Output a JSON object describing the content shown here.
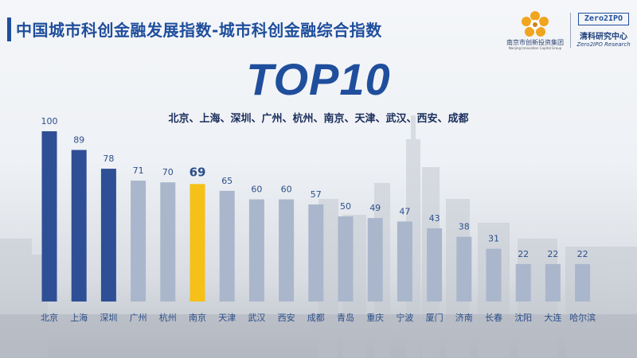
{
  "header": {
    "title": "中国城市科创金融发展指数-城市科创金融综合指数"
  },
  "logo_left": {
    "name": "南京市创新投资集团",
    "name_en": "Nanjing Innovation Capital Group"
  },
  "logo_right": {
    "badge": "Zero2IPO",
    "name": "清科研究中心",
    "name_en": "Zero2IPO Research"
  },
  "headline": "TOP10",
  "subheadline": "北京、上海、深圳、广州、杭州、南京、天津、武汉、西安、成都",
  "colors": {
    "accent": "#1f4e9c",
    "bar_top3": "#2e4f95",
    "bar_other": "#aab6cb",
    "bar_highlight": "#f5c018",
    "label": "#2c4f8a"
  },
  "chart_data": {
    "type": "bar",
    "categories": [
      "北京",
      "上海",
      "深圳",
      "广州",
      "杭州",
      "南京",
      "天津",
      "武汉",
      "西安",
      "成都",
      "青岛",
      "重庆",
      "宁波",
      "厦门",
      "济南",
      "长春",
      "沈阳",
      "大连",
      "哈尔滨"
    ],
    "values": [
      100,
      89,
      78,
      71,
      70,
      69,
      65,
      60,
      60,
      57,
      50,
      49,
      47,
      43,
      38,
      31,
      22,
      22,
      22
    ],
    "highlight_index": 5,
    "dark_indices": [
      0,
      1,
      2
    ],
    "ylim": [
      0,
      100
    ],
    "grid": false,
    "legend": "none",
    "title": "",
    "xlabel": "",
    "ylabel": ""
  }
}
